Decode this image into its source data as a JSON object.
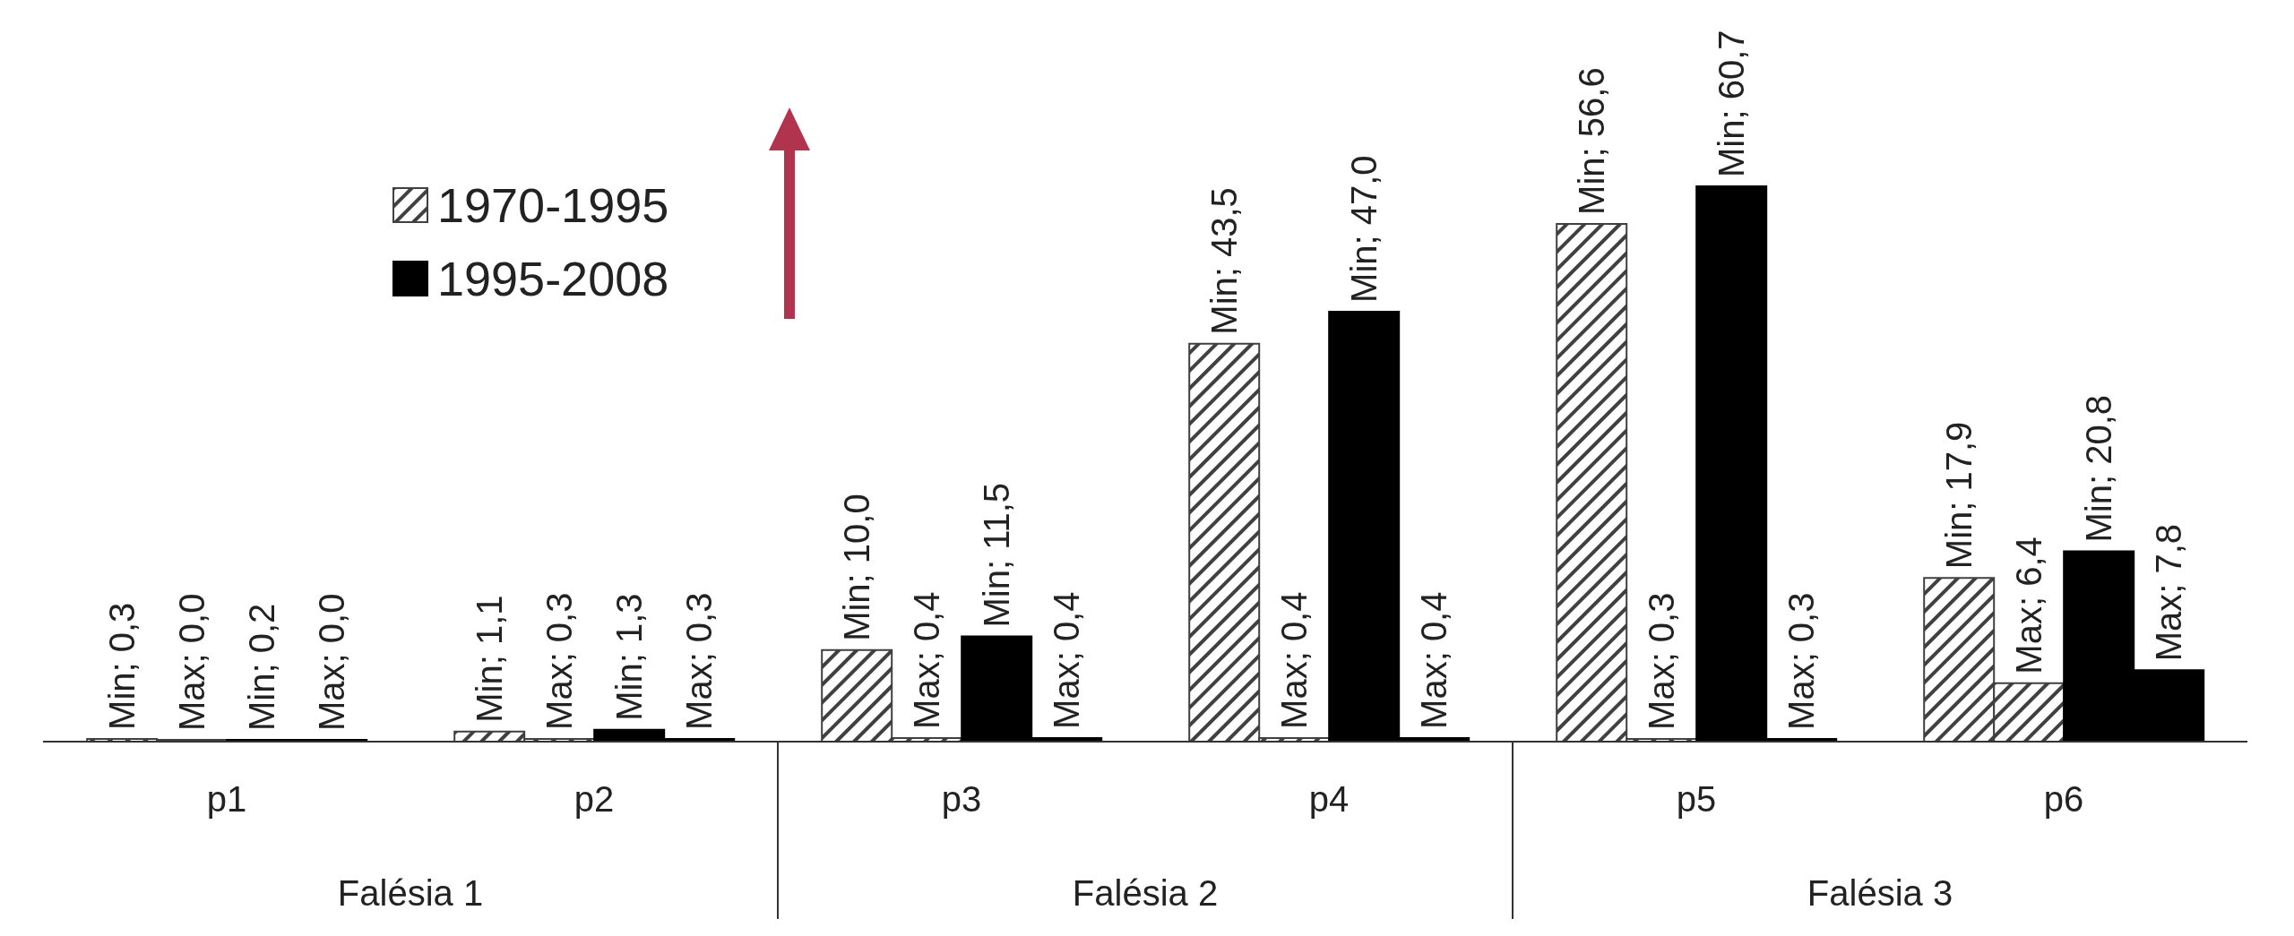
{
  "chart_data": {
    "type": "bar",
    "categories": [
      "p1",
      "p2",
      "p3",
      "p4",
      "p5",
      "p6"
    ],
    "annotations": [
      "Falésia 1",
      "Falésia 2",
      "Falésia 3"
    ],
    "series": [
      {
        "name": "1970-1995",
        "color": "#404040",
        "values": [
          0.3,
          1.1,
          10.0,
          43.5,
          56.6,
          17.9
        ],
        "value_labels": [
          "Min; 0,3",
          "Min; 1,1",
          "Min; 10,0",
          "Min; 43,5",
          "Min; 56,6",
          "Min; 17,9"
        ]
      },
      {
        "color": "#404040",
        "values": [
          0.0,
          0.3,
          0.4,
          0.4,
          0.3,
          6.4
        ],
        "value_labels": [
          "Max; 0,0",
          "Max; 0,3",
          "Max; 0,4",
          "Max; 0,4",
          "Max; 0,3",
          "Max; 6,4"
        ]
      },
      {
        "name": "1995-2008",
        "color": "#000000",
        "values": [
          0.2,
          1.3,
          11.5,
          47.0,
          60.7,
          20.8
        ],
        "value_labels": [
          "Min; 0,2",
          "Min; 1,3",
          "Min; 11,5",
          "Min; 47,0",
          "Min; 60,7",
          "Min; 20,8"
        ]
      },
      {
        "color": "#000000",
        "values": [
          0.0,
          0.3,
          0.4,
          0.4,
          0.3,
          7.8
        ],
        "value_labels": [
          "Max; 0,0",
          "Max; 0,3",
          "Max; 0,4",
          "Max; 0,4",
          "Max; 0,3",
          "Max; 7,8"
        ]
      }
    ],
    "legend": "top left",
    "grid": false
  }
}
